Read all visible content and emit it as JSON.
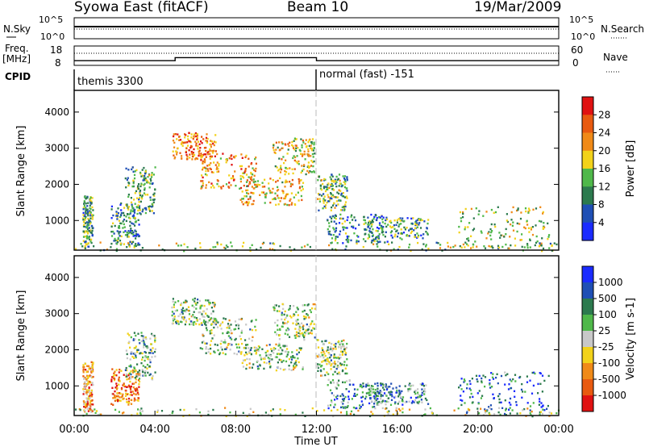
{
  "header": {
    "title": "Syowa East (fitACF)",
    "beam": "Beam 10",
    "date": "19/Mar/2009"
  },
  "param_panels": {
    "nsky_label": "N.Sky",
    "nsearch_label": "N.Search",
    "nsky_ticks": [
      "10^5",
      "10^0"
    ],
    "nsearch_ticks": [
      "10^5",
      "10^0"
    ],
    "freq_label": "Freq.",
    "freq_unit": "[MHz]",
    "freq_ticks": [
      "18",
      "8"
    ],
    "nave_label": "Nave",
    "nave_ticks": [
      "60",
      "0"
    ],
    "cpid_label": "CPID",
    "cpid_modes": [
      {
        "label": "themis 3300",
        "start_hour": 0,
        "end_hour": 12
      },
      {
        "label": "normal (fast) -151",
        "start_hour": 12,
        "end_hour": 24
      }
    ],
    "freq_steps": [
      {
        "start_hour": 0,
        "end_hour": 5,
        "value_mhz": 10.4
      },
      {
        "start_hour": 5,
        "end_hour": 12,
        "value_mhz": 12.0
      },
      {
        "start_hour": 12,
        "end_hour": 24,
        "value_mhz": 10.4
      }
    ]
  },
  "chart_data": [
    {
      "type": "heatmap",
      "name": "power",
      "ylabel": "Slant Range [km]",
      "xlabel": "",
      "xlim": [
        0,
        24
      ],
      "ylim": [
        180,
        4600
      ],
      "y_ticks": [
        "1000",
        "2000",
        "3000",
        "4000"
      ],
      "colorbar_label": "Power [dB]",
      "colorbar_ticks": [
        "4",
        "8",
        "12",
        "16",
        "20",
        "24",
        "28"
      ],
      "colorbar_colors": [
        "#1a2bff",
        "#1f4fb5",
        "#2c7a4e",
        "#4fb84a",
        "#f2d21a",
        "#f08a18",
        "#e85a10",
        "#e01212"
      ],
      "clusters": [
        {
          "t": [
            0.4,
            0.9
          ],
          "r": [
            300,
            1700
          ],
          "level": 0.35
        },
        {
          "t": [
            1.8,
            3.2
          ],
          "r": [
            250,
            1500
          ],
          "level": 0.3
        },
        {
          "t": [
            2.5,
            4.0
          ],
          "r": [
            1200,
            2500
          ],
          "level": 0.4
        },
        {
          "t": [
            4.8,
            7.0
          ],
          "r": [
            2700,
            3450
          ],
          "level": 0.75
        },
        {
          "t": [
            6.2,
            9.0
          ],
          "r": [
            1900,
            2900
          ],
          "level": 0.7
        },
        {
          "t": [
            8.2,
            11.3
          ],
          "r": [
            1450,
            2200
          ],
          "level": 0.6
        },
        {
          "t": [
            9.8,
            11.9
          ],
          "r": [
            2300,
            3300
          ],
          "level": 0.55
        },
        {
          "t": [
            12.0,
            13.5
          ],
          "r": [
            1300,
            2300
          ],
          "level": 0.4
        },
        {
          "t": [
            12.5,
            15.5
          ],
          "r": [
            400,
            1200
          ],
          "level": 0.3
        },
        {
          "t": [
            14.5,
            17.5
          ],
          "r": [
            500,
            1100
          ],
          "level": 0.35
        },
        {
          "t": [
            19.0,
            23.5
          ],
          "r": [
            250,
            1400
          ],
          "level": 0.5
        },
        {
          "t": [
            0.0,
            24.0
          ],
          "r": [
            180,
            420
          ],
          "level": 0.45
        }
      ]
    },
    {
      "type": "heatmap",
      "name": "velocity",
      "ylabel": "Slant Range [km]",
      "xlabel": "Time UT",
      "xlim": [
        0,
        24
      ],
      "ylim": [
        180,
        4600
      ],
      "x_ticks": [
        "00:00",
        "04:00",
        "08:00",
        "12:00",
        "16:00",
        "20:00",
        "00:00"
      ],
      "y_ticks": [
        "1000",
        "2000",
        "3000",
        "4000"
      ],
      "colorbar_label": "Velocity [m s-1]",
      "colorbar_ticks": [
        "1000",
        "500",
        "100",
        "25",
        "-25",
        "-100",
        "-500",
        "-1000"
      ],
      "colorbar_colors": [
        "#1a2bff",
        "#1f4fb5",
        "#2c7a4e",
        "#4fb84a",
        "#c8c8c8",
        "#f2d21a",
        "#f08a18",
        "#e85a10",
        "#e01212"
      ],
      "clusters": [
        {
          "t": [
            0.4,
            0.9
          ],
          "r": [
            300,
            1700
          ],
          "level": 0.7
        },
        {
          "t": [
            1.8,
            3.2
          ],
          "r": [
            500,
            1500
          ],
          "level": 0.8
        },
        {
          "t": [
            2.5,
            4.0
          ],
          "r": [
            1200,
            2500
          ],
          "level": 0.4
        },
        {
          "t": [
            4.8,
            7.0
          ],
          "r": [
            2700,
            3450
          ],
          "level": 0.45
        },
        {
          "t": [
            6.2,
            9.0
          ],
          "r": [
            1900,
            2900
          ],
          "level": 0.45
        },
        {
          "t": [
            8.2,
            11.3
          ],
          "r": [
            1450,
            2200
          ],
          "level": 0.45
        },
        {
          "t": [
            9.8,
            11.9
          ],
          "r": [
            2300,
            3300
          ],
          "level": 0.45
        },
        {
          "t": [
            12.0,
            13.5
          ],
          "r": [
            1300,
            2300
          ],
          "level": 0.45
        },
        {
          "t": [
            12.5,
            15.5
          ],
          "r": [
            400,
            1200
          ],
          "level": 0.3
        },
        {
          "t": [
            14.5,
            17.5
          ],
          "r": [
            500,
            1100
          ],
          "level": 0.3
        },
        {
          "t": [
            19.0,
            23.5
          ],
          "r": [
            250,
            1400
          ],
          "level": 0.2
        },
        {
          "t": [
            0.0,
            24.0
          ],
          "r": [
            180,
            420
          ],
          "level": 0.5
        }
      ]
    }
  ]
}
